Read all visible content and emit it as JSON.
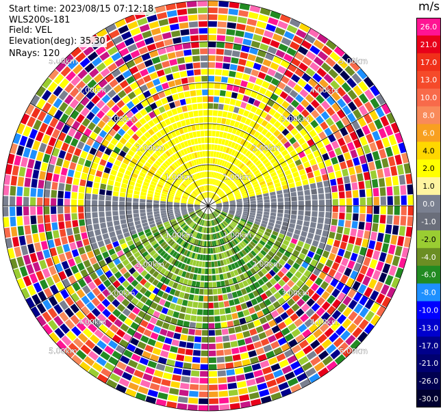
{
  "header": {
    "start_time": "Start time: 2023/08/15 07:12:18",
    "instrument": "WLS200s-181",
    "field": "Field: VEL",
    "elevation": "Elevation(deg): 35.30",
    "nrays": "NRays: 120"
  },
  "colorbar": {
    "unit": "m/s",
    "levels": [
      {
        "label": "26.0",
        "color": "#ff1493"
      },
      {
        "label": "21.0",
        "color": "#e8001a"
      },
      {
        "label": "17.0",
        "color": "#f0301a"
      },
      {
        "label": "13.0",
        "color": "#f54a2a"
      },
      {
        "label": "10.0",
        "color": "#f86a4a"
      },
      {
        "label": "8.0",
        "color": "#f98a5a"
      },
      {
        "label": "6.0",
        "color": "#f8a020"
      },
      {
        "label": "4.0",
        "color": "#ffd700"
      },
      {
        "label": "2.0",
        "color": "#ffff00"
      },
      {
        "label": "1.0",
        "color": "#fff4a0"
      },
      {
        "label": "0.0",
        "color": "#7a8090"
      },
      {
        "label": "-1.0",
        "color": "#6a6e7a"
      },
      {
        "label": "-2.0",
        "color": "#9acd32"
      },
      {
        "label": "-4.0",
        "color": "#6b8e23"
      },
      {
        "label": "-6.0",
        "color": "#228b22"
      },
      {
        "label": "-8.0",
        "color": "#1e90ff"
      },
      {
        "label": "-10.0",
        "color": "#0000ff"
      },
      {
        "label": "-13.0",
        "color": "#0000cd"
      },
      {
        "label": "-17.0",
        "color": "#00008b"
      },
      {
        "label": "-21.0",
        "color": "#000070"
      },
      {
        "label": "-26.0",
        "color": "#000050"
      },
      {
        "label": "-30.0",
        "color": "#000030"
      }
    ]
  },
  "chart_data": {
    "type": "heatmap",
    "title": "Start time: 2023/08/15 07:12:18",
    "field": "VEL",
    "unit": "m/s",
    "elevation_deg": 35.3,
    "nrays": 120,
    "range_ring_labels": [
      "1.00km",
      "2.00km",
      "3.00km",
      "4.00km",
      "5.00km"
    ],
    "range_rings_km": [
      1,
      2,
      3,
      4,
      5
    ],
    "max_range_km": 5.9,
    "near_field_pattern": "positive (yellow) velocities to the north, negative (gray/green) velocities to the south; noisy multicolor clutter beyond ~3 km"
  }
}
